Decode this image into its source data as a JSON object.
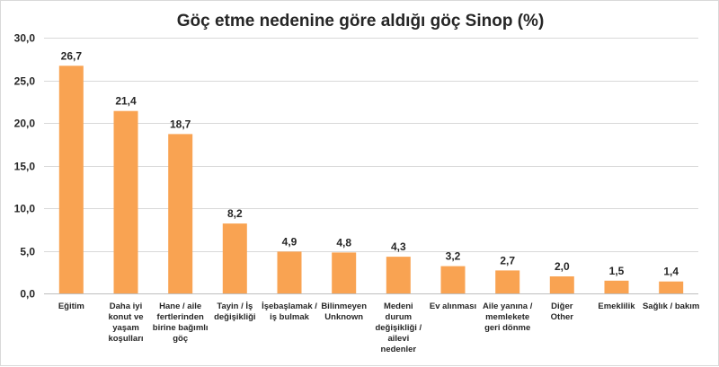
{
  "chart_data": {
    "type": "bar",
    "title": "Göç etme nedenine göre aldığı göç Sinop (%)",
    "xlabel": "",
    "ylabel": "",
    "ylim": [
      0,
      30
    ],
    "yticks": [
      "0,0",
      "5,0",
      "10,0",
      "15,0",
      "20,0",
      "25,0",
      "30,0"
    ],
    "grid": true,
    "legend": "none",
    "colors": {
      "bar": "#f9a352",
      "grid": "#d9d9d9",
      "text": "#262626"
    },
    "categories": [
      [
        "Eğitim"
      ],
      [
        "Daha iyi",
        "konut ve",
        "yaşam",
        "koşulları"
      ],
      [
        "Hane / aile",
        "fertlerinden",
        "birine bağımlı",
        "göç"
      ],
      [
        "Tayin / İş",
        "değişikliği"
      ],
      [
        "İşebaşlamak /",
        "iş bulmak"
      ],
      [
        "Bilinmeyen",
        "Unknown"
      ],
      [
        "Medeni",
        "durum",
        "değişikliği /",
        "ailevi",
        "nedenler"
      ],
      [
        "Ev alınması"
      ],
      [
        "Aile yanına /",
        "memlekete",
        "geri dönme"
      ],
      [
        "Diğer",
        "Other"
      ],
      [
        "Emeklilik"
      ],
      [
        "Sağlık / bakım"
      ]
    ],
    "values": [
      26.7,
      21.4,
      18.7,
      8.2,
      4.9,
      4.8,
      4.3,
      3.2,
      2.7,
      2.0,
      1.5,
      1.4
    ],
    "data_labels": [
      "26,7",
      "21,4",
      "18,7",
      "8,2",
      "4,9",
      "4,8",
      "4,3",
      "3,2",
      "2,7",
      "2,0",
      "1,5",
      "1,4"
    ]
  }
}
